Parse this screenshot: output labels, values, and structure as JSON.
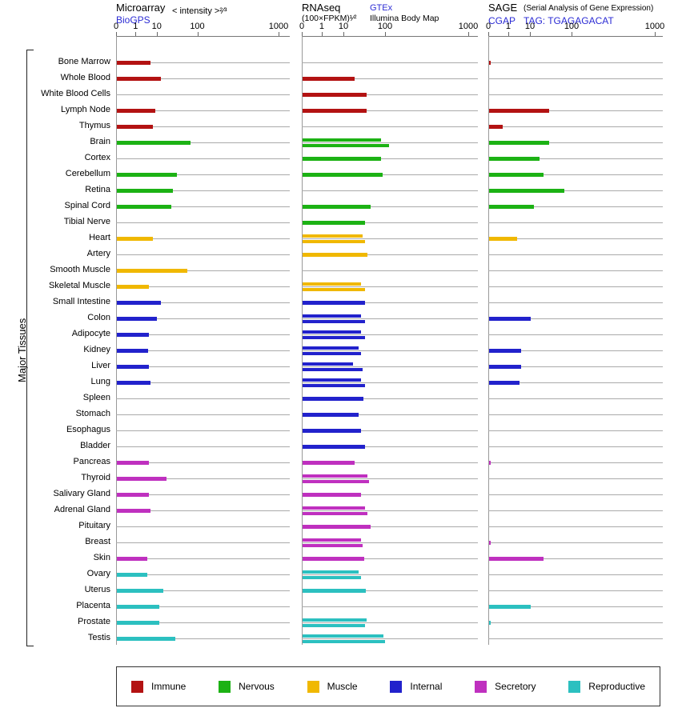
{
  "y_axis_label": "Major Tissues",
  "panels": [
    {
      "title": "Microarray",
      "link": "BioGPS",
      "note": "< intensity >²⁄³"
    },
    {
      "title": "RNAseq",
      "link": "GTEx",
      "note": "(100×FPKM)¹⁄²",
      "secondary": "Illumina Body Map"
    },
    {
      "title": "SAGE",
      "note": "(Serial Analysis of Gene Expression)",
      "link": "CGAP",
      "tag": "TAG: TGAGAGACAT"
    }
  ],
  "legend": {
    "items": [
      {
        "key": "immune",
        "label": "Immune",
        "color": "#b31212"
      },
      {
        "key": "nervous",
        "label": "Nervous",
        "color": "#1cb214"
      },
      {
        "key": "muscle",
        "label": "Muscle",
        "color": "#f0b800"
      },
      {
        "key": "internal",
        "label": "Internal",
        "color": "#2222cc"
      },
      {
        "key": "secretory",
        "label": "Secretory",
        "color": "#bf30bf"
      },
      {
        "key": "reproductive",
        "label": "Reproductive",
        "color": "#2cc0c0"
      }
    ]
  },
  "chart_data": {
    "type": "bar",
    "orientation": "horizontal",
    "x_axis": {
      "scale": "log",
      "tick_labels": [
        "0",
        "1",
        "10",
        "100",
        "1000"
      ],
      "tick_values": [
        0,
        1,
        10,
        100,
        1000
      ]
    },
    "tissues": [
      {
        "name": "Bone Marrow",
        "group": "immune"
      },
      {
        "name": "Whole Blood",
        "group": "immune"
      },
      {
        "name": "White Blood Cells",
        "group": "immune"
      },
      {
        "name": "Lymph Node",
        "group": "immune"
      },
      {
        "name": "Thymus",
        "group": "immune"
      },
      {
        "name": "Brain",
        "group": "nervous"
      },
      {
        "name": "Cortex",
        "group": "nervous"
      },
      {
        "name": "Cerebellum",
        "group": "nervous"
      },
      {
        "name": "Retina",
        "group": "nervous"
      },
      {
        "name": "Spinal Cord",
        "group": "nervous"
      },
      {
        "name": "Tibial Nerve",
        "group": "nervous"
      },
      {
        "name": "Heart",
        "group": "muscle"
      },
      {
        "name": "Artery",
        "group": "muscle"
      },
      {
        "name": "Smooth Muscle",
        "group": "muscle"
      },
      {
        "name": "Skeletal Muscle",
        "group": "muscle"
      },
      {
        "name": "Small Intestine",
        "group": "internal"
      },
      {
        "name": "Colon",
        "group": "internal"
      },
      {
        "name": "Adipocyte",
        "group": "internal"
      },
      {
        "name": "Kidney",
        "group": "internal"
      },
      {
        "name": "Liver",
        "group": "internal"
      },
      {
        "name": "Lung",
        "group": "internal"
      },
      {
        "name": "Spleen",
        "group": "internal"
      },
      {
        "name": "Stomach",
        "group": "internal"
      },
      {
        "name": "Esophagus",
        "group": "internal"
      },
      {
        "name": "Bladder",
        "group": "internal"
      },
      {
        "name": "Pancreas",
        "group": "secretory"
      },
      {
        "name": "Thyroid",
        "group": "secretory"
      },
      {
        "name": "Salivary Gland",
        "group": "secretory"
      },
      {
        "name": "Adrenal Gland",
        "group": "secretory"
      },
      {
        "name": "Pituitary",
        "group": "secretory"
      },
      {
        "name": "Breast",
        "group": "secretory"
      },
      {
        "name": "Skin",
        "group": "secretory"
      },
      {
        "name": "Ovary",
        "group": "reproductive"
      },
      {
        "name": "Uterus",
        "group": "reproductive"
      },
      {
        "name": "Placenta",
        "group": "reproductive"
      },
      {
        "name": "Prostate",
        "group": "reproductive"
      },
      {
        "name": "Testis",
        "group": "reproductive"
      }
    ],
    "series": [
      {
        "name": "Microarray (BioGPS) < intensity >^(2/3)",
        "panel": 0,
        "values": [
          4.5,
          12,
          null,
          8,
          6,
          65,
          null,
          30,
          24,
          22,
          null,
          6,
          null,
          55,
          4,
          12,
          9,
          4,
          3.5,
          4,
          4.5,
          null,
          null,
          null,
          null,
          4,
          17,
          4,
          4.5,
          null,
          null,
          3.3,
          3.3,
          14,
          11,
          11,
          27
        ]
      },
      {
        "name": "RNAseq GTEx (100×FPKM)^(1/2)",
        "panel": 1,
        "slot": 0,
        "values": [
          null,
          18,
          null,
          null,
          null,
          75,
          75,
          85,
          null,
          43,
          32,
          28,
          36,
          null,
          25,
          32,
          25,
          25,
          22,
          16,
          25,
          29,
          22,
          25,
          32,
          18,
          36,
          25,
          32,
          43,
          25,
          30,
          22,
          33,
          null,
          35,
          88
        ]
      },
      {
        "name": "RNAseq Illumina Body Map (100×FPKM)^(1/2)",
        "panel": 1,
        "slot": 1,
        "values": [
          null,
          null,
          35,
          35,
          null,
          110,
          null,
          null,
          null,
          null,
          null,
          32,
          null,
          null,
          32,
          null,
          32,
          32,
          25,
          28,
          32,
          null,
          null,
          null,
          null,
          null,
          40,
          null,
          36,
          null,
          28,
          null,
          25,
          null,
          null,
          32,
          95
        ]
      },
      {
        "name": "SAGE CGAP TAG: TGAGAGACAT",
        "panel": 2,
        "values": [
          0.1,
          null,
          null,
          28,
          0.7,
          28,
          16,
          20,
          65,
          12,
          null,
          2.3,
          null,
          null,
          null,
          null,
          10,
          null,
          3.5,
          3.5,
          3,
          null,
          null,
          null,
          null,
          0.1,
          null,
          null,
          null,
          null,
          0.1,
          20,
          null,
          null,
          10,
          0.1,
          null
        ]
      }
    ]
  }
}
